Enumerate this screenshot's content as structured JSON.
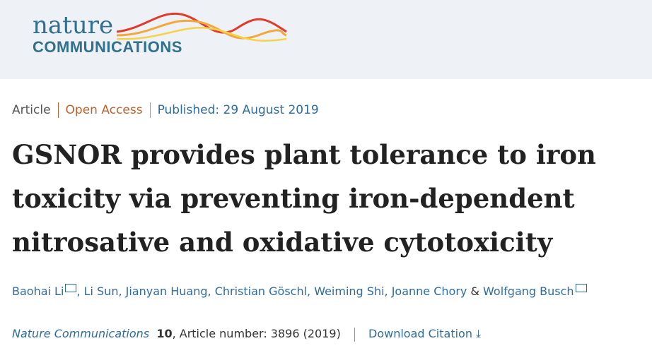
{
  "header": {
    "logo_top": "nature",
    "logo_bottom": "COMMUNICATIONS"
  },
  "meta": {
    "type": "Article",
    "access": "Open Access",
    "published": "Published: 29 August 2019"
  },
  "title": "GSNOR provides plant tolerance to iron toxicity via preventing iron-dependent nitrosative and oxidative cytotoxicity",
  "authors": [
    "Baohai Li",
    "Li Sun",
    "Jianyan Huang",
    "Christian Göschl",
    "Weiming Shi",
    "Joanne Chory",
    "Wolfgang Busch"
  ],
  "authors_join": "&",
  "citation": {
    "journal": "Nature Communications",
    "volume": "10",
    "article": ", Article number: 3896 (2019)",
    "download": "Download Citation"
  }
}
